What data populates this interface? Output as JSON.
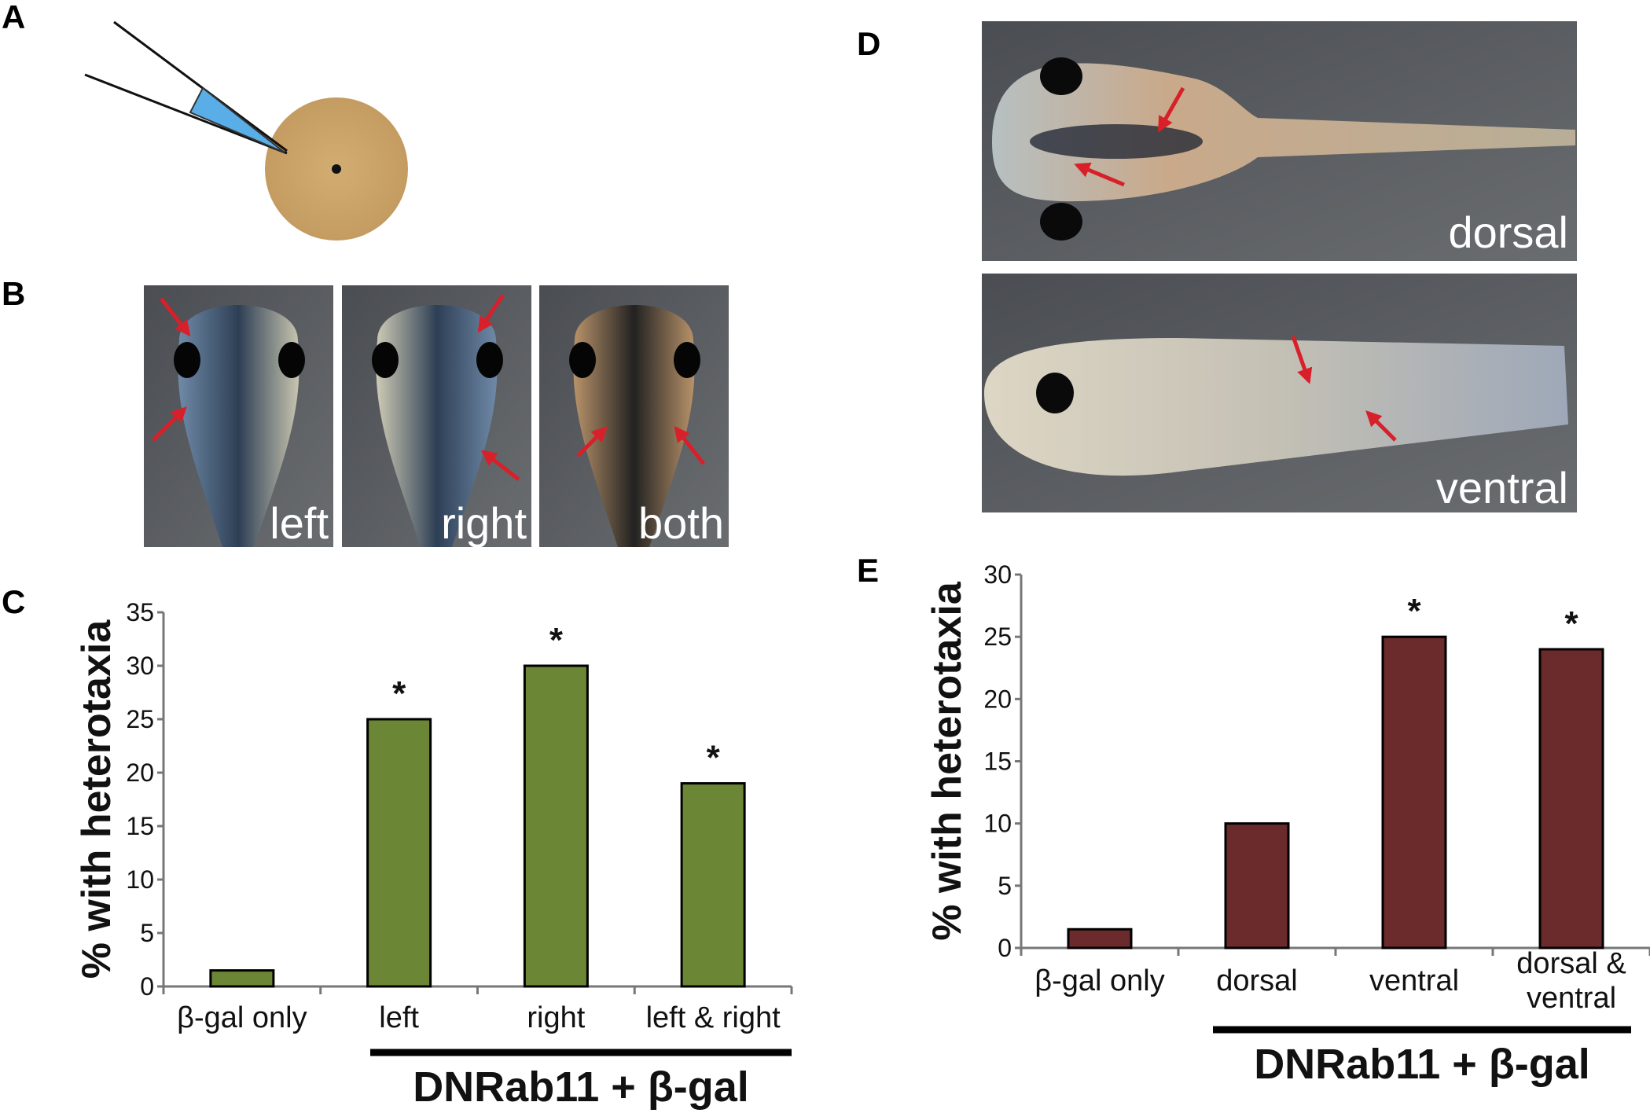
{
  "panels": {
    "A": "A",
    "B": "B",
    "C": "C",
    "D": "D",
    "E": "E"
  },
  "panel_b": {
    "labels": [
      "left",
      "right",
      "both"
    ]
  },
  "panel_d": {
    "labels": [
      "dorsal",
      "ventral"
    ]
  },
  "colors": {
    "egg": "#c9a46a",
    "needle_fluid": "#5aaee8",
    "arrow": "#d8202a",
    "bar_c": "#6b8635",
    "bar_e": "#6b2a2b"
  },
  "icons": {
    "arrow": "red-arrow"
  },
  "chart_data": [
    {
      "type": "bar",
      "panel": "C",
      "categories": [
        "β-gal only",
        "left",
        "right",
        "left & right"
      ],
      "values": [
        1.5,
        25,
        30,
        19
      ],
      "significant": [
        false,
        true,
        true,
        true
      ],
      "significance_marker": "*",
      "ylabel": "% with heterotaxia",
      "group_label": "DNRab11 + β-gal",
      "ylim": [
        0,
        35
      ],
      "yticks": [
        0,
        5,
        10,
        15,
        20,
        25,
        30,
        35
      ],
      "grid": false
    },
    {
      "type": "bar",
      "panel": "E",
      "categories": [
        "β-gal only",
        "dorsal",
        "ventral",
        "dorsal & ventral"
      ],
      "values": [
        1.5,
        10,
        25,
        24
      ],
      "significant": [
        false,
        false,
        true,
        true
      ],
      "significance_marker": "*",
      "ylabel": "% with heterotaxia",
      "group_label": "DNRab11 + β-gal",
      "ylim": [
        0,
        30
      ],
      "yticks": [
        0,
        5,
        10,
        15,
        20,
        25,
        30
      ],
      "grid": false
    }
  ]
}
